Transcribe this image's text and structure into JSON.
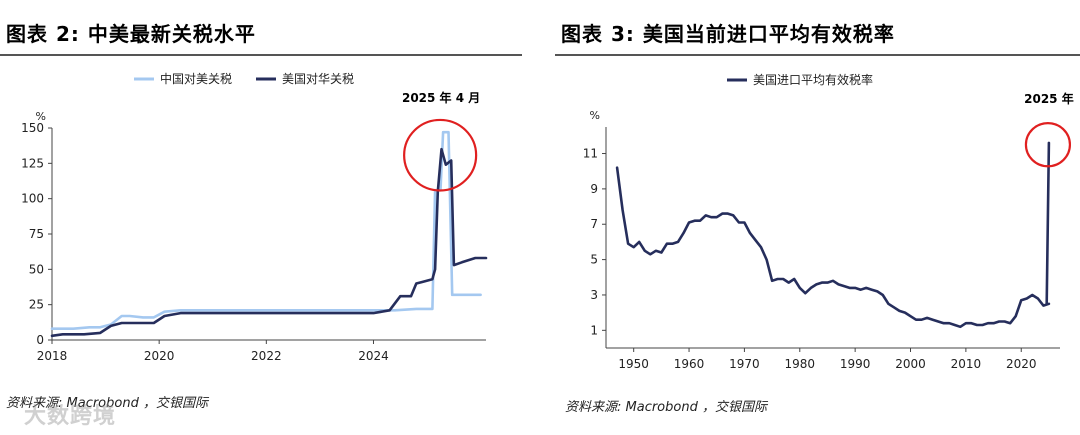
{
  "left": {
    "title": "图表 2: 中美最新关税水平",
    "source": "资料来源: Macrobond ，交银国际",
    "watermark": "大数跨境",
    "chart_data": {
      "type": "line",
      "xlabel": "",
      "ylabel": "%",
      "ylim": [
        0,
        150
      ],
      "yticks": [
        0,
        25,
        50,
        75,
        100,
        125,
        150
      ],
      "xlim": [
        2018,
        2026.1
      ],
      "xticks": [
        2018,
        2020,
        2022,
        2024
      ],
      "legend_position": "top",
      "grid": false,
      "annotation": {
        "text": "2025 年 4 月",
        "marker": "circle",
        "x": 2025.3,
        "y": 135
      },
      "series": [
        {
          "name": "中国对美关税",
          "color": "#a4c8f0",
          "x": [
            2018.0,
            2018.4,
            2018.7,
            2018.9,
            2019.1,
            2019.3,
            2019.45,
            2019.7,
            2019.9,
            2020.1,
            2020.4,
            2020.5,
            2020.7,
            2021.0,
            2022.0,
            2023.0,
            2024.0,
            2024.4,
            2024.8,
            2025.0,
            2025.1,
            2025.15,
            2025.25,
            2025.3,
            2025.4,
            2025.47,
            2025.55,
            2026.0
          ],
          "y": [
            8,
            8,
            9,
            9,
            11,
            17,
            17,
            16,
            16,
            20,
            21,
            21,
            21,
            21,
            21,
            21,
            21,
            21,
            22,
            22,
            22,
            106,
            106,
            147,
            147,
            32,
            32,
            32
          ]
        },
        {
          "name": "美国对华关税",
          "color": "#262e5c",
          "x": [
            2018.0,
            2018.2,
            2018.4,
            2018.6,
            2018.9,
            2019.1,
            2019.3,
            2019.7,
            2019.9,
            2020.1,
            2020.4,
            2020.5,
            2021.0,
            2022.0,
            2023.0,
            2024.0,
            2024.3,
            2024.5,
            2024.7,
            2024.8,
            2024.9,
            2025.1,
            2025.15,
            2025.2,
            2025.27,
            2025.35,
            2025.45,
            2025.5,
            2025.65,
            2025.9,
            2026.0,
            2026.1
          ],
          "y": [
            3,
            4,
            4,
            4,
            5,
            10,
            12,
            12,
            12,
            17,
            19,
            19,
            19,
            19,
            19,
            19,
            21,
            31,
            31,
            40,
            41,
            43,
            50,
            105,
            135,
            124,
            127,
            53,
            55,
            58,
            58,
            58
          ]
        }
      ]
    }
  },
  "right": {
    "title": "图表 3: 美国当前进口平均有效税率",
    "source": "资料来源: Macrobond ，交银国际",
    "chart_data": {
      "type": "line",
      "xlabel": "",
      "ylabel": "%",
      "ylim": [
        0,
        12.5
      ],
      "yticks": [
        1,
        3,
        5,
        7,
        9,
        11
      ],
      "xlim": [
        1945,
        2027
      ],
      "xticks": [
        1950,
        1960,
        1970,
        1980,
        1990,
        2000,
        2010,
        2020
      ],
      "legend_position": "top",
      "grid": false,
      "annotation": {
        "text": "2025 年",
        "marker": "circle",
        "x": 2025,
        "y": 11.5
      },
      "series": [
        {
          "name": "美国进口平均有效税率",
          "color": "#262e5c",
          "x": [
            1947,
            1948,
            1949,
            1950,
            1951,
            1952,
            1953,
            1954,
            1955,
            1956,
            1957,
            1958,
            1959,
            1960,
            1961,
            1962,
            1963,
            1964,
            1965,
            1966,
            1967,
            1968,
            1969,
            1970,
            1971,
            1972,
            1973,
            1974,
            1975,
            1976,
            1977,
            1978,
            1979,
            1980,
            1981,
            1982,
            1983,
            1984,
            1985,
            1986,
            1987,
            1988,
            1989,
            1990,
            1991,
            1992,
            1993,
            1994,
            1995,
            1996,
            1997,
            1998,
            1999,
            2000,
            2001,
            2002,
            2003,
            2004,
            2005,
            2006,
            2007,
            2008,
            2009,
            2010,
            2011,
            2012,
            2013,
            2014,
            2015,
            2016,
            2017,
            2018,
            2019,
            2020,
            2021,
            2022,
            2023,
            2024,
            2025
          ],
          "y": [
            10.2,
            7.8,
            5.9,
            5.7,
            6.0,
            5.5,
            5.3,
            5.5,
            5.4,
            5.9,
            5.9,
            6.0,
            6.5,
            7.1,
            7.2,
            7.2,
            7.5,
            7.4,
            7.4,
            7.6,
            7.6,
            7.5,
            7.1,
            7.1,
            6.5,
            6.1,
            5.7,
            5.0,
            3.8,
            3.9,
            3.9,
            3.7,
            3.9,
            3.4,
            3.1,
            3.4,
            3.6,
            3.7,
            3.7,
            3.8,
            3.6,
            3.5,
            3.4,
            3.4,
            3.3,
            3.4,
            3.3,
            3.2,
            3.0,
            2.5,
            2.3,
            2.1,
            2.0,
            1.8,
            1.6,
            1.6,
            1.7,
            1.6,
            1.5,
            1.4,
            1.4,
            1.3,
            1.2,
            1.4,
            1.4,
            1.3,
            1.3,
            1.4,
            1.4,
            1.5,
            1.5,
            1.4,
            1.8,
            2.7,
            2.8,
            3.0,
            2.8,
            2.4,
            2.5
          ]
        },
        {
          "name": "",
          "color": "#262e5c",
          "x": [
            2024.6,
            2025.0
          ],
          "y": [
            2.5,
            11.6
          ]
        }
      ]
    }
  }
}
